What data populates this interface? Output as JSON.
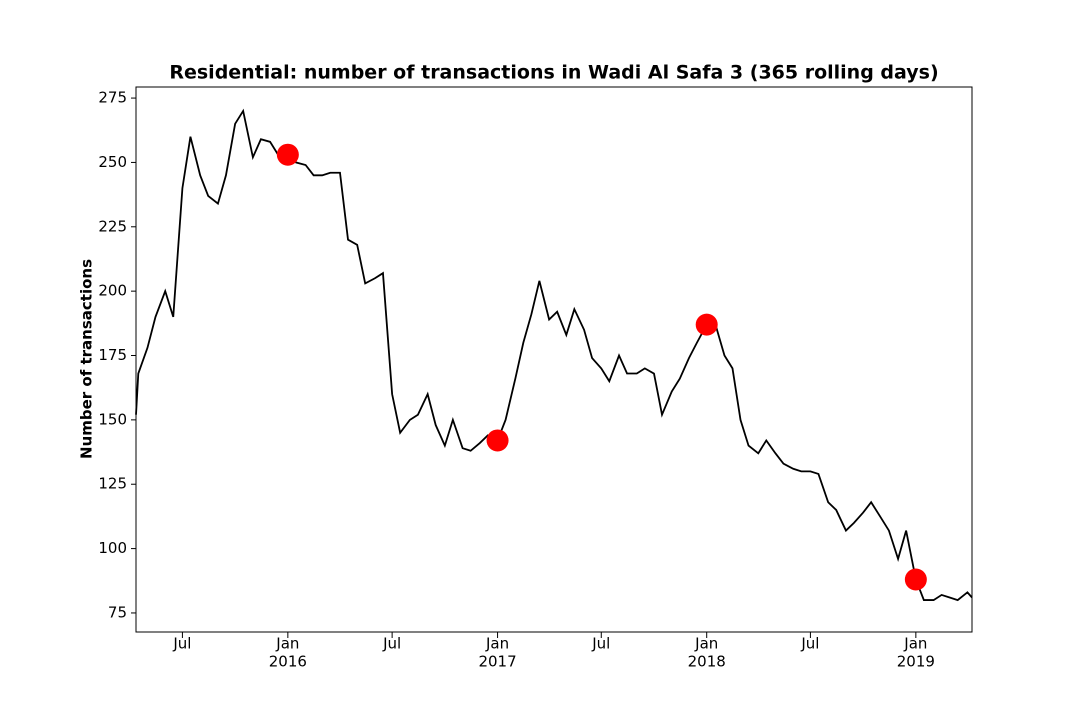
{
  "chart_data": {
    "type": "line",
    "title": "Residential: number of transactions in Wadi Al Safa 3 (365 rolling days)",
    "y_label": "Number of transactions",
    "x": [
      "2015-04-11",
      "2015-04-15",
      "2015-05-01",
      "2015-05-15",
      "2015-06-01",
      "2015-06-15",
      "2015-07-01",
      "2015-07-15",
      "2015-08-01",
      "2015-08-15",
      "2015-09-01",
      "2015-09-15",
      "2015-10-01",
      "2015-10-15",
      "2015-11-01",
      "2015-11-15",
      "2015-12-01",
      "2015-12-15",
      "2016-01-01",
      "2016-01-15",
      "2016-02-01",
      "2016-02-15",
      "2016-03-01",
      "2016-03-15",
      "2016-04-01",
      "2016-04-15",
      "2016-05-01",
      "2016-05-15",
      "2016-06-01",
      "2016-06-15",
      "2016-07-01",
      "2016-07-15",
      "2016-08-01",
      "2016-08-15",
      "2016-09-01",
      "2016-09-15",
      "2016-10-01",
      "2016-10-15",
      "2016-11-01",
      "2016-11-15",
      "2016-12-01",
      "2016-12-15",
      "2017-01-01",
      "2017-01-15",
      "2017-02-01",
      "2017-02-15",
      "2017-03-01",
      "2017-03-15",
      "2017-04-01",
      "2017-04-15",
      "2017-05-01",
      "2017-05-15",
      "2017-06-01",
      "2017-06-15",
      "2017-07-01",
      "2017-07-15",
      "2017-08-01",
      "2017-08-15",
      "2017-09-01",
      "2017-09-15",
      "2017-10-01",
      "2017-10-15",
      "2017-11-01",
      "2017-11-15",
      "2017-12-01",
      "2017-12-15",
      "2018-01-01",
      "2018-01-15",
      "2018-02-01",
      "2018-02-15",
      "2018-03-01",
      "2018-03-15",
      "2018-04-01",
      "2018-04-15",
      "2018-05-01",
      "2018-05-15",
      "2018-06-01",
      "2018-06-15",
      "2018-07-01",
      "2018-07-15",
      "2018-08-01",
      "2018-08-15",
      "2018-09-01",
      "2018-09-15",
      "2018-10-01",
      "2018-10-15",
      "2018-11-01",
      "2018-11-15",
      "2018-12-01",
      "2018-12-15",
      "2019-01-01",
      "2019-01-15",
      "2019-02-01",
      "2019-02-15",
      "2019-03-01",
      "2019-03-15",
      "2019-04-01",
      "2019-04-09"
    ],
    "values": [
      152,
      168,
      178,
      190,
      200,
      190,
      240,
      260,
      245,
      237,
      234,
      245,
      265,
      270,
      252,
      259,
      258,
      253,
      253,
      250,
      249,
      245,
      245,
      246,
      246,
      220,
      218,
      203,
      205,
      207,
      160,
      145,
      150,
      152,
      160,
      148,
      140,
      150,
      139,
      138,
      141,
      144,
      142,
      150,
      166,
      180,
      191,
      204,
      189,
      192,
      183,
      193,
      185,
      174,
      170,
      165,
      175,
      168,
      168,
      170,
      168,
      152,
      161,
      166,
      174,
      180,
      187,
      188,
      175,
      170,
      150,
      140,
      137,
      142,
      137,
      133,
      131,
      130,
      130,
      129,
      118,
      115,
      107,
      110,
      114,
      118,
      112,
      107,
      96,
      107,
      88,
      80,
      80,
      82,
      81,
      80,
      83,
      81
    ],
    "color": "#000000",
    "markers": {
      "x": [
        "2016-01-01",
        "2017-01-01",
        "2018-01-01",
        "2019-01-01"
      ],
      "values": [
        253,
        142,
        187,
        88
      ],
      "color": "#ff0000"
    },
    "xlim": [
      "2015-04-11",
      "2019-04-09"
    ],
    "xticks": [
      {
        "value": "2015-07-01",
        "label": "Jul"
      },
      {
        "value": "2016-01-01",
        "label": "Jan",
        "year": "2016"
      },
      {
        "value": "2016-07-01",
        "label": "Jul"
      },
      {
        "value": "2017-01-01",
        "label": "Jan",
        "year": "2017"
      },
      {
        "value": "2017-07-01",
        "label": "Jul"
      },
      {
        "value": "2018-01-01",
        "label": "Jan",
        "year": "2018"
      },
      {
        "value": "2018-07-01",
        "label": "Jul"
      },
      {
        "value": "2019-01-01",
        "label": "Jan",
        "year": "2019"
      }
    ],
    "ylim": [
      67.6,
      279.3
    ],
    "yticks": [
      75,
      100,
      125,
      150,
      175,
      200,
      225,
      250,
      275
    ],
    "grid": false
  }
}
